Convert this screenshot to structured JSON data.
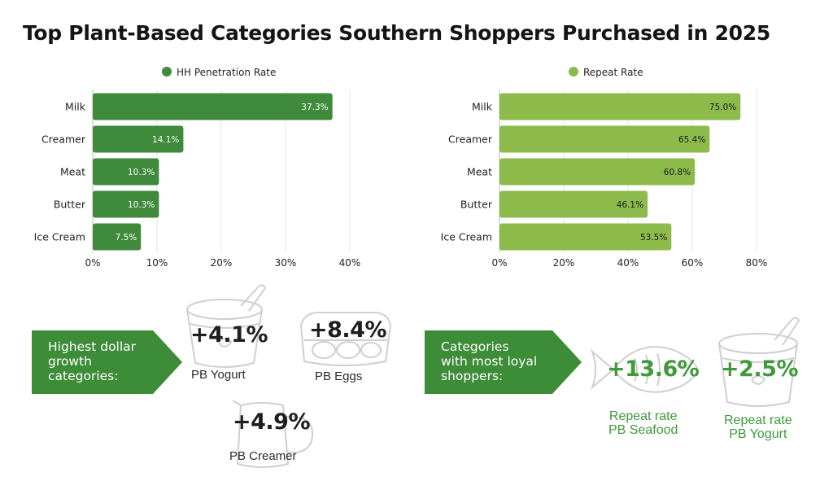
{
  "title": "Top Plant-Based Categories Southern Shoppers Purchased in 2025",
  "chart_data": [
    {
      "type": "bar",
      "orientation": "horizontal",
      "legend": "top-center",
      "categories": [
        "Milk",
        "Creamer",
        "Meat",
        "Butter",
        "Ice Cream"
      ],
      "series": [
        {
          "name": "HH Penetration Rate",
          "values": [
            37.3,
            14.1,
            10.3,
            10.3,
            7.5
          ]
        }
      ],
      "data_labels": [
        "37.3%",
        "14.1%",
        "10.3%",
        "10.3%",
        "7.5%"
      ],
      "xlim": [
        0,
        40
      ],
      "xticks": [
        0,
        10,
        20,
        30,
        40
      ],
      "xtick_labels": [
        "0%",
        "10%",
        "20%",
        "30%",
        "40%"
      ],
      "color": "#3f8a3b",
      "grid": true
    },
    {
      "type": "bar",
      "orientation": "horizontal",
      "legend": "top-center",
      "categories": [
        "Milk",
        "Creamer",
        "Meat",
        "Butter",
        "Ice Cream"
      ],
      "series": [
        {
          "name": "Repeat Rate",
          "values": [
            75.0,
            65.4,
            60.8,
            46.1,
            53.5
          ]
        }
      ],
      "data_labels": [
        "75.0%",
        "65.4%",
        "60.8%",
        "46.1%",
        "53.5%"
      ],
      "xlim": [
        0,
        80
      ],
      "xticks": [
        0,
        20,
        40,
        60,
        80
      ],
      "xtick_labels": [
        "0%",
        "20%",
        "40%",
        "60%",
        "80%"
      ],
      "color": "#8cbb4c",
      "grid": true
    }
  ],
  "growth": {
    "banner": "Highest dollar\ngrowth\ncategories:",
    "items": [
      {
        "value": "+4.1%",
        "label": "PB Yogurt",
        "icon": "yogurt-cup-icon"
      },
      {
        "value": "+8.4%",
        "label": "PB Eggs",
        "icon": "egg-carton-icon"
      },
      {
        "value": "+4.9%",
        "label": "PB Creamer",
        "icon": "creamer-pitcher-icon"
      }
    ]
  },
  "loyal": {
    "banner": "Categories\nwith most loyal\nshoppers:",
    "items": [
      {
        "value": "+13.6%",
        "label": "Repeat rate\nPB Seafood",
        "icon": "fish-icon"
      },
      {
        "value": "+2.5%",
        "label": "Repeat rate\nPB Yogurt",
        "icon": "yogurt-cup-icon"
      }
    ]
  },
  "colors": {
    "dark_green": "#3f8a3b",
    "light_green": "#8cbb4c",
    "banner_green": "#3d8c38",
    "text_green": "#3f9a3a"
  }
}
